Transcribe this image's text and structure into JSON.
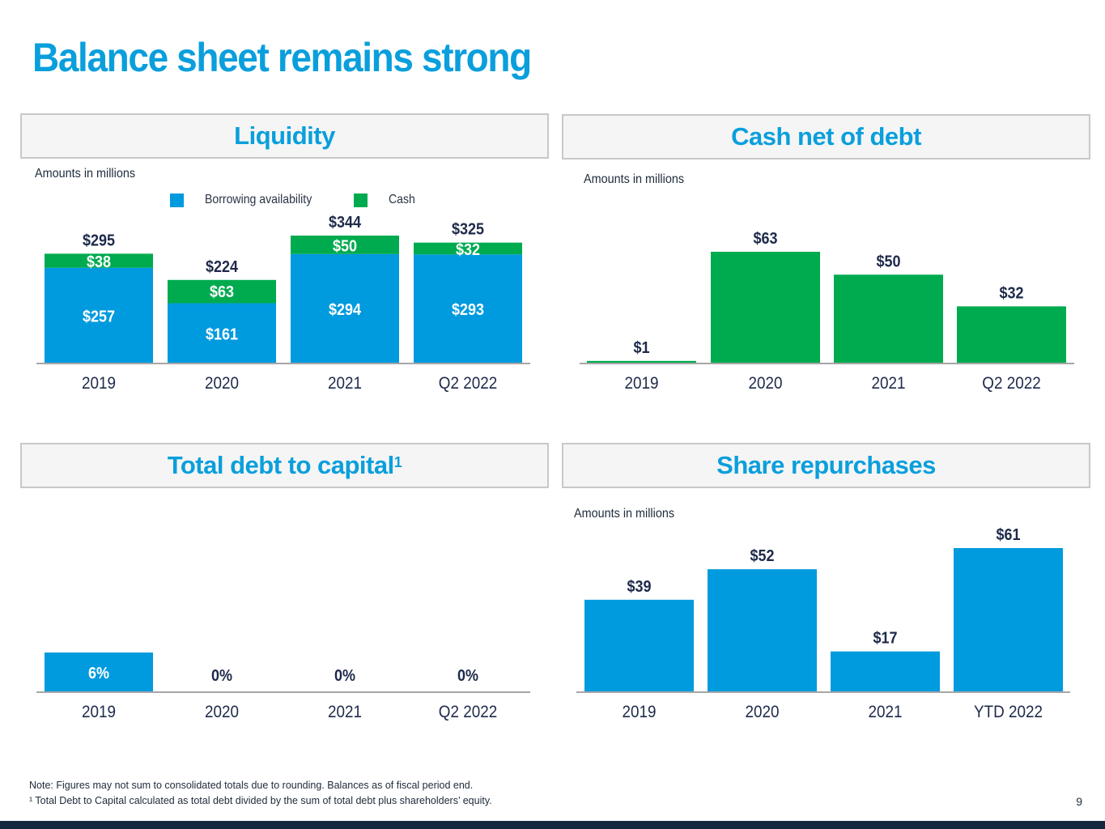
{
  "page": {
    "title": "Balance sheet remains strong",
    "page_number": "9",
    "footnotes": [
      "Note: Figures may not sum to consolidated totals due to rounding. Balances as of fiscal period end.",
      "¹ Total Debt to Capital calculated as total debt divided by the sum of total debt plus shareholders’ equity."
    ]
  },
  "colors": {
    "title_blue": "#0a9fdc",
    "bar_blue": "#009ade",
    "bar_green": "#00ab4f",
    "label_dark": "#1e2a4a",
    "footer_bar": "#14273f"
  },
  "panels": {
    "liquidity": {
      "title": "Liquidity",
      "units_note": "Amounts in millions"
    },
    "cash_net_of_debt": {
      "title": "Cash net of debt",
      "units_note": "Amounts in millions"
    },
    "debt_to_capital": {
      "title": "Total debt to capital",
      "title_sup": "1"
    },
    "share_repurchases": {
      "title": "Share repurchases",
      "units_note": "Amounts in millions"
    }
  },
  "chart_data": [
    {
      "id": "liquidity",
      "type": "bar",
      "stacked": true,
      "title": "Liquidity",
      "ylabel": "Amounts in millions",
      "categories": [
        "2019",
        "2020",
        "2021",
        "Q2 2022"
      ],
      "series": [
        {
          "name": "Borrowing availability",
          "color": "#009ade",
          "values": [
            257,
            161,
            294,
            293
          ],
          "labels": [
            "$257",
            "$161",
            "$294",
            "$293"
          ]
        },
        {
          "name": "Cash",
          "color": "#00ab4f",
          "values": [
            38,
            63,
            50,
            32
          ],
          "labels": [
            "$38",
            "$63",
            "$50",
            "$32"
          ]
        }
      ],
      "totals": [
        295,
        224,
        344,
        325
      ],
      "total_labels": [
        "$295",
        "$224",
        "$344",
        "$325"
      ],
      "legend": [
        "Borrowing availability",
        "Cash"
      ],
      "legend_position": "top-center",
      "grid": false,
      "ylim": [
        0,
        344
      ]
    },
    {
      "id": "cash_net_of_debt",
      "type": "bar",
      "title": "Cash net of debt",
      "ylabel": "Amounts in millions",
      "categories": [
        "2019",
        "2020",
        "2021",
        "Q2 2022"
      ],
      "values": [
        1,
        63,
        50,
        32
      ],
      "labels": [
        "$1",
        "$63",
        "$50",
        "$32"
      ],
      "color": "#00ab4f",
      "grid": false,
      "ylim": [
        0,
        63
      ]
    },
    {
      "id": "debt_to_capital",
      "type": "bar",
      "title": "Total debt to capital",
      "categories": [
        "2019",
        "2020",
        "2021",
        "Q2 2022"
      ],
      "values": [
        6,
        0,
        0,
        0
      ],
      "labels": [
        "6%",
        "0%",
        "0%",
        "0%"
      ],
      "color": "#009ade",
      "grid": false,
      "ylim": [
        0,
        100
      ]
    },
    {
      "id": "share_repurchases",
      "type": "bar",
      "title": "Share repurchases",
      "ylabel": "Amounts in millions",
      "categories": [
        "2019",
        "2020",
        "2021",
        "YTD 2022"
      ],
      "values": [
        39,
        52,
        17,
        61
      ],
      "labels": [
        "$39",
        "$52",
        "$17",
        "$61"
      ],
      "color": "#009ade",
      "grid": false,
      "ylim": [
        0,
        61
      ]
    }
  ]
}
